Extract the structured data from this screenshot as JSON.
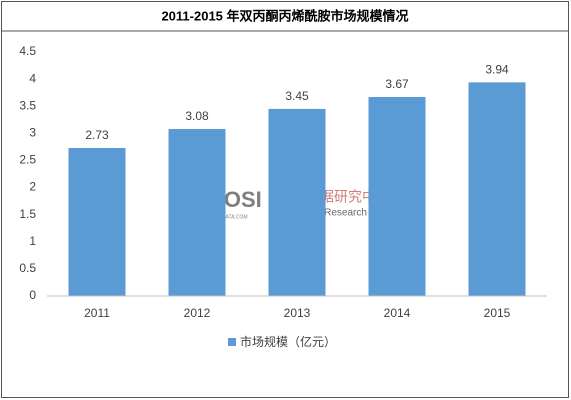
{
  "chart_data": {
    "type": "bar",
    "title": "2011-2015 年双丙酮丙烯酰胺市场规模情况",
    "categories": [
      "2011",
      "2012",
      "2013",
      "2014",
      "2015"
    ],
    "series": [
      {
        "name": "市场规模（亿元）",
        "color": "#5b9bd5",
        "values": [
          2.73,
          3.08,
          3.45,
          3.67,
          3.94
        ]
      }
    ],
    "ylim": [
      0,
      4.5
    ],
    "yticks": [
      0,
      0.5,
      1,
      1.5,
      2,
      2.5,
      3,
      3.5,
      4,
      4.5
    ],
    "grid": false,
    "legend": "bottom",
    "watermark": {
      "logo": "BOSI",
      "site": "BOSIDATA.COM",
      "name": "博思数据研究中心",
      "name_en": "Bosi Data Research Center"
    }
  }
}
